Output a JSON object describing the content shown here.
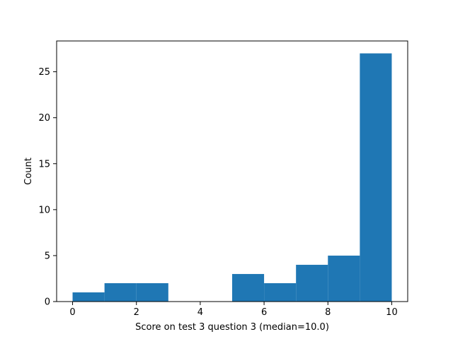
{
  "chart_data": {
    "type": "bar",
    "subtype": "histogram",
    "title": "",
    "xlabel": "Score on test 3 question 3 (median=10.0)",
    "ylabel": "Count",
    "xlim": [
      -0.5,
      10.5
    ],
    "ylim": [
      0,
      28.35
    ],
    "xticks": [
      0,
      2,
      4,
      6,
      8,
      10
    ],
    "yticks": [
      0,
      5,
      10,
      15,
      20,
      25
    ],
    "grid": false,
    "bar_color": "#1f77b4",
    "bins": [
      {
        "x0": 0,
        "x1": 1,
        "count": 1
      },
      {
        "x0": 1,
        "x1": 2,
        "count": 2
      },
      {
        "x0": 2,
        "x1": 3,
        "count": 2
      },
      {
        "x0": 3,
        "x1": 4,
        "count": 0
      },
      {
        "x0": 4,
        "x1": 5,
        "count": 0
      },
      {
        "x0": 5,
        "x1": 6,
        "count": 3
      },
      {
        "x0": 6,
        "x1": 7,
        "count": 2
      },
      {
        "x0": 7,
        "x1": 8,
        "count": 4
      },
      {
        "x0": 8,
        "x1": 9,
        "count": 5
      },
      {
        "x0": 9,
        "x1": 10,
        "count": 27
      }
    ]
  }
}
